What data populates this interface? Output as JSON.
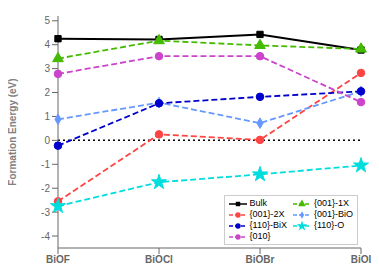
{
  "chart_data": {
    "type": "line",
    "categories": [
      "BiOF",
      "BiOCl",
      "BiOBr",
      "BiOI"
    ],
    "series": [
      {
        "name": "Bulk",
        "color": "#000000",
        "line_style": "solid",
        "marker": "square",
        "values": [
          4.25,
          4.22,
          4.43,
          3.78
        ]
      },
      {
        "name": "{001}-1X",
        "color": "#44BB00",
        "line_style": "dashed",
        "marker": "triangle",
        "values": [
          3.42,
          4.17,
          3.97,
          3.82
        ]
      },
      {
        "name": "{001}-2X",
        "color": "#FF4444",
        "line_style": "dashed",
        "marker": "circle",
        "values": [
          -2.55,
          0.25,
          0.02,
          2.82
        ]
      },
      {
        "name": "{001}-BiO",
        "color": "#6699FF",
        "line_style": "dashed",
        "marker": "diamond",
        "values": [
          0.88,
          1.58,
          0.72,
          2.05
        ]
      },
      {
        "name": "{110}-BiX",
        "color": "#0000CC",
        "line_style": "dashed",
        "marker": "circle",
        "values": [
          -0.22,
          1.55,
          1.82,
          2.05
        ]
      },
      {
        "name": "{110}-O",
        "color": "#00DDDD",
        "line_style": "dashed",
        "marker": "star",
        "values": [
          -2.75,
          -1.75,
          -1.42,
          -1.05
        ]
      },
      {
        "name": "{010}",
        "color": "#CC44CC",
        "line_style": "dashed",
        "marker": "circle",
        "values": [
          2.78,
          3.52,
          3.52,
          1.6
        ]
      }
    ],
    "ylabel": "Formation Energy (eV)",
    "ylim": [
      -4.5,
      5.2
    ],
    "yticks": [
      -4,
      -3,
      -2,
      -1,
      0,
      1,
      2,
      3,
      4,
      5
    ],
    "hline_y": 0.0,
    "grid": false,
    "legend": "lower right"
  }
}
